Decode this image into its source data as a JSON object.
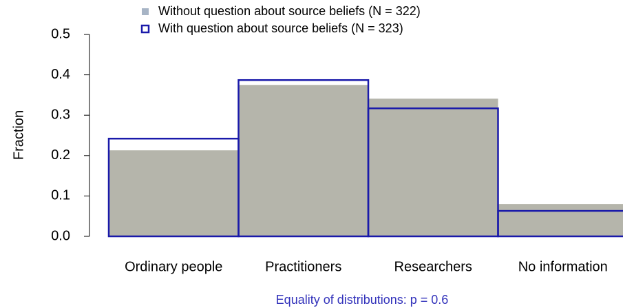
{
  "chart_data": {
    "type": "bar",
    "y_label": "Fraction",
    "note": "Equality of distributions: p = 0.6",
    "note_color": "#3333bb",
    "categories": [
      "Ordinary people",
      "Practitioners",
      "Researchers",
      "No information"
    ],
    "series": [
      {
        "name": "Without question about source beliefs (N = 322)",
        "color": "#b5b5ab",
        "legend_color": "#a7b4c5",
        "outline": false,
        "values": [
          0.213,
          0.375,
          0.341,
          0.08
        ]
      },
      {
        "name": "With question about source beliefs (N = 323)",
        "color": "#1a1aaa",
        "outline": true,
        "values": [
          0.242,
          0.387,
          0.317,
          0.063
        ]
      }
    ],
    "ylim": [
      0,
      0.5
    ],
    "yticks": [
      {
        "value": 0,
        "label": "0.0"
      },
      0.1,
      0.2,
      0.3,
      0.4,
      0.5
    ]
  }
}
